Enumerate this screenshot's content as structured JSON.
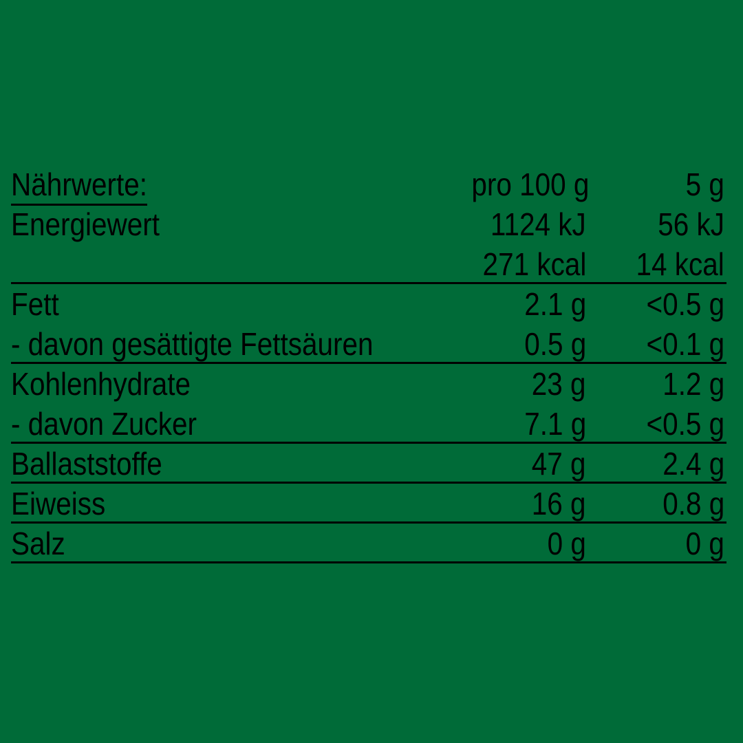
{
  "colors": {
    "background": "#006B38",
    "ink": "#000000"
  },
  "table": {
    "title": "Nährwerte:",
    "col_headers": [
      "pro 100 g",
      "5 g"
    ],
    "rows": [
      {
        "label": "Energiewert",
        "per_100g": "1124 kJ",
        "per_portion": "56 kJ"
      },
      {
        "label": "",
        "per_100g": "271 kcal",
        "per_portion": "14 kcal"
      },
      {
        "label": "Fett",
        "per_100g": "2.1 g",
        "per_portion": "<0.5 g"
      },
      {
        "label": "- davon gesättigte Fettsäuren",
        "per_100g": "0.5 g",
        "per_portion": "<0.1 g"
      },
      {
        "label": "Kohlenhydrate",
        "per_100g": "23 g",
        "per_portion": "1.2 g"
      },
      {
        "label": "- davon Zucker",
        "per_100g": "7.1 g",
        "per_portion": "<0.5 g"
      },
      {
        "label": "Ballaststoffe",
        "per_100g": "47 g",
        "per_portion": "2.4 g"
      },
      {
        "label": "Eiweiss",
        "per_100g": "16 g",
        "per_portion": "0.8 g"
      },
      {
        "label": "Salz",
        "per_100g": "0 g",
        "per_portion": "0 g"
      }
    ]
  }
}
